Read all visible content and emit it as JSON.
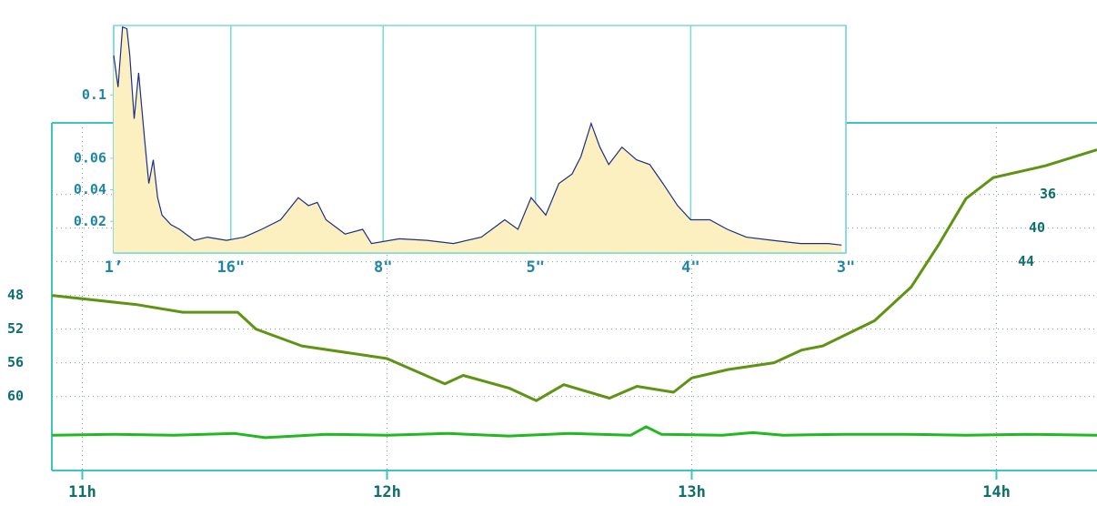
{
  "chart_data": [
    {
      "type": "line",
      "xlim": [
        10.9,
        14.33
      ],
      "xticks": [
        {
          "value": 11,
          "label": "11h"
        },
        {
          "value": 12,
          "label": "12h"
        },
        {
          "value": 13,
          "label": "13h"
        },
        {
          "value": 14,
          "label": "14h"
        }
      ],
      "ylim": [
        68.8,
        27.5
      ],
      "yticks": [
        48,
        52,
        56,
        60
      ],
      "y2lim": [
        68.8,
        27.5
      ],
      "y2ticks": [
        36,
        40,
        44
      ],
      "grid": true,
      "series": [
        {
          "color": "#5f9412",
          "x": [
            10.9,
            11.18,
            11.33,
            11.51,
            11.57,
            11.72,
            12.0,
            12.19,
            12.25,
            12.4,
            12.49,
            12.58,
            12.73,
            12.82,
            12.94,
            13.0,
            13.12,
            13.27,
            13.36,
            13.43,
            13.6,
            13.72,
            13.81,
            13.9,
            13.99,
            14.16,
            14.33
          ],
          "values": [
            48,
            49.1,
            50,
            50,
            52,
            54,
            55.5,
            58.5,
            57.5,
            59,
            60.5,
            58.6,
            60.2,
            58.8,
            59.5,
            57.8,
            56.8,
            56,
            54.5,
            54,
            51,
            47,
            42,
            36.5,
            34,
            32.6,
            30.7
          ]
        },
        {
          "color": "#22b822",
          "axis": "y2",
          "x": [
            10.9,
            11.1,
            11.3,
            11.5,
            11.6,
            11.8,
            12.0,
            12.2,
            12.4,
            12.6,
            12.8,
            12.85,
            12.9,
            13.1,
            13.2,
            13.3,
            13.5,
            13.7,
            13.9,
            14.1,
            14.33
          ],
          "values": [
            64.6,
            64.5,
            64.6,
            64.4,
            64.9,
            64.5,
            64.6,
            64.4,
            64.7,
            64.4,
            64.6,
            63.6,
            64.5,
            64.6,
            64.3,
            64.6,
            64.5,
            64.5,
            64.6,
            64.5,
            64.6
          ]
        }
      ]
    },
    {
      "type": "area",
      "color": "#fdf0c0",
      "line_color": "#1a2e8a",
      "xlim": [
        0,
        5
      ],
      "xticks": [
        {
          "value": 0,
          "label": "1’"
        },
        {
          "value": 0.8,
          "label": "16\""
        },
        {
          "value": 1.84,
          "label": "8\""
        },
        {
          "value": 2.88,
          "label": "5\""
        },
        {
          "value": 3.94,
          "label": "4\""
        },
        {
          "value": 5,
          "label": "3\""
        }
      ],
      "ylim": [
        0,
        0.144
      ],
      "yticks": [
        0.02,
        0.04,
        0.06,
        0.1
      ],
      "grid": true,
      "x": [
        0,
        0.03,
        0.06,
        0.09,
        0.11,
        0.14,
        0.17,
        0.21,
        0.24,
        0.27,
        0.3,
        0.33,
        0.39,
        0.45,
        0.55,
        0.64,
        0.77,
        0.89,
        1.01,
        1.14,
        1.26,
        1.33,
        1.39,
        1.45,
        1.58,
        1.7,
        1.76,
        1.95,
        2.14,
        2.32,
        2.51,
        2.67,
        2.76,
        2.85,
        2.95,
        3.04,
        3.13,
        3.19,
        3.26,
        3.32,
        3.38,
        3.47,
        3.57,
        3.66,
        3.75,
        3.85,
        3.94,
        4.07,
        4.19,
        4.32,
        4.5,
        4.69,
        4.88,
        4.97
      ],
      "values": [
        0.125,
        0.105,
        0.143,
        0.142,
        0.125,
        0.085,
        0.114,
        0.073,
        0.044,
        0.059,
        0.035,
        0.024,
        0.018,
        0.015,
        0.008,
        0.01,
        0.008,
        0.01,
        0.015,
        0.021,
        0.035,
        0.03,
        0.032,
        0.021,
        0.012,
        0.015,
        0.006,
        0.009,
        0.008,
        0.006,
        0.01,
        0.021,
        0.015,
        0.035,
        0.024,
        0.044,
        0.05,
        0.061,
        0.082,
        0.067,
        0.056,
        0.067,
        0.059,
        0.056,
        0.044,
        0.03,
        0.021,
        0.021,
        0.015,
        0.01,
        0.008,
        0.006,
        0.006,
        0.005
      ]
    }
  ]
}
